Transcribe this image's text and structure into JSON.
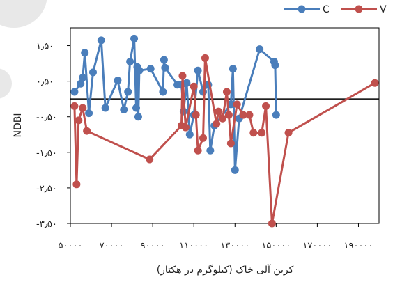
{
  "chart_data": {
    "type": "line",
    "title": "",
    "xlabel": "کربن آلی خاک (کیلوگرم در هکتار)",
    "ylabel": "NDBI",
    "xlim": [
      50000,
      200000
    ],
    "ylim": [
      -3.5,
      2.0
    ],
    "x_ticks": [
      50000,
      70000,
      90000,
      110000,
      130000,
      150000,
      170000,
      190000
    ],
    "x_tick_labels": [
      "۵۰۰۰۰",
      "۷۰۰۰۰",
      "۹۰۰۰۰",
      "۱۱۰۰۰۰",
      "۱۳۰۰۰۰",
      "۱۵۰۰۰۰",
      "۱۷۰۰۰۰",
      "۱۹۰۰۰۰"
    ],
    "y_ticks": [
      1.5,
      0.5,
      -0.5,
      -1.5,
      -2.5,
      -3.5
    ],
    "y_tick_labels": [
      "۱٫۵۰",
      "۰٫۵۰",
      "-۰٫۵۰",
      "-۱٫۵۰",
      "-۲٫۵۰",
      "-۳٫۵۰"
    ],
    "reference_line_y": 0,
    "legend_position": "top-right",
    "series": [
      {
        "name": "C",
        "color": "#4a7ebb",
        "points": [
          [
            52000,
            0.2
          ],
          [
            55000,
            0.43
          ],
          [
            56000,
            0.6
          ],
          [
            57000,
            1.3
          ],
          [
            59000,
            -0.4
          ],
          [
            61000,
            0.75
          ],
          [
            65000,
            1.65
          ],
          [
            67000,
            -0.25
          ],
          [
            73000,
            0.52
          ],
          [
            76000,
            -0.3
          ],
          [
            78000,
            0.2
          ],
          [
            79000,
            1.05
          ],
          [
            81000,
            1.7
          ],
          [
            82000,
            -0.25
          ],
          [
            82500,
            0.9
          ],
          [
            83000,
            -0.5
          ],
          [
            83500,
            0.8
          ],
          [
            89000,
            0.85
          ],
          [
            95000,
            0.2
          ],
          [
            95500,
            1.1
          ],
          [
            96000,
            0.88
          ],
          [
            102000,
            0.4
          ],
          [
            104000,
            0.4
          ],
          [
            105000,
            -0.35
          ],
          [
            106500,
            0.45
          ],
          [
            108000,
            -1.0
          ],
          [
            110000,
            -0.45
          ],
          [
            112000,
            0.8
          ],
          [
            114500,
            0.2
          ],
          [
            117000,
            0.4
          ],
          [
            118000,
            -1.45
          ],
          [
            120000,
            -0.75
          ],
          [
            128000,
            -0.15
          ],
          [
            129000,
            0.85
          ],
          [
            130000,
            -2.0
          ],
          [
            132000,
            -0.55
          ],
          [
            142000,
            1.4
          ],
          [
            149000,
            1.05
          ],
          [
            149500,
            0.95
          ],
          [
            150000,
            -0.45
          ]
        ]
      },
      {
        "name": "V",
        "color": "#c0504d",
        "points": [
          [
            52000,
            -0.2
          ],
          [
            53000,
            -2.4
          ],
          [
            54000,
            -0.6
          ],
          [
            56000,
            -0.25
          ],
          [
            58000,
            -0.9
          ],
          [
            88500,
            -1.7
          ],
          [
            104000,
            -0.75
          ],
          [
            104500,
            0.65
          ],
          [
            106000,
            -0.8
          ],
          [
            110000,
            0.35
          ],
          [
            111000,
            -0.45
          ],
          [
            112000,
            -1.45
          ],
          [
            114500,
            -1.1
          ],
          [
            115500,
            1.15
          ],
          [
            121000,
            -0.7
          ],
          [
            122000,
            -0.35
          ],
          [
            124000,
            -0.55
          ],
          [
            126000,
            0.2
          ],
          [
            127000,
            -0.45
          ],
          [
            128000,
            -1.25
          ],
          [
            131000,
            -0.15
          ],
          [
            134000,
            -0.45
          ],
          [
            137000,
            -0.45
          ],
          [
            139000,
            -0.95
          ],
          [
            143000,
            -0.95
          ],
          [
            145000,
            -0.2
          ],
          [
            148000,
            -3.5
          ],
          [
            156000,
            -0.95
          ],
          [
            198000,
            0.45
          ]
        ]
      }
    ]
  }
}
